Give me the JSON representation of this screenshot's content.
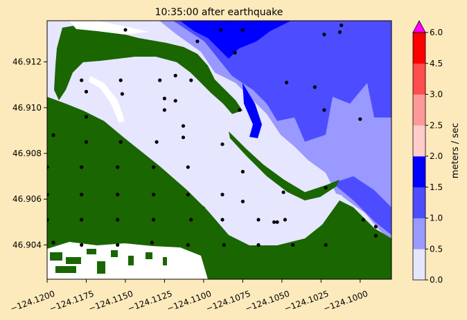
{
  "chart_data": {
    "type": "heatmap",
    "title": "10:35:00 after earthquake",
    "xlabel": "",
    "ylabel": "",
    "xlim": [
      -124.12,
      -124.098
    ],
    "ylim": [
      46.9025,
      46.9138
    ],
    "x_ticks": [
      -124.12,
      -124.1175,
      -124.115,
      -124.1125,
      -124.11,
      -124.1075,
      -124.105,
      -124.1025,
      -124.1
    ],
    "x_tick_labels": [
      "−124.1200",
      "−124.1175",
      "−124.1150",
      "−124.1125",
      "−124.1100",
      "−124.1075",
      "−124.1050",
      "−124.1025",
      "−124.1000"
    ],
    "y_ticks": [
      46.904,
      46.906,
      46.908,
      46.91,
      46.912
    ],
    "y_tick_labels": [
      "46.904",
      "46.906",
      "46.908",
      "46.910",
      "46.912"
    ],
    "grid": false,
    "colorbar": {
      "label": "meters / sec",
      "levels": [
        0.0,
        0.5,
        1.0,
        1.5,
        2.0,
        2.5,
        3.0,
        4.5,
        6.0
      ],
      "level_labels": [
        "0.0",
        "0.5",
        "1.0",
        "1.5",
        "2.0",
        "2.5",
        "3.0",
        "4.5",
        "6.0"
      ],
      "colors": [
        "#e6e6ff",
        "#9999ff",
        "#4d4dff",
        "#0000ff",
        "#ffcccc",
        "#ff9999",
        "#ff4d4d",
        "#ff0000"
      ],
      "extend_color": "#ff00ff"
    },
    "land_color": "#1a6600",
    "dry_color": "#ffffff",
    "arrow_color": "#000000",
    "velocity_points": [
      {
        "x": -124.12,
        "y": 46.9074
      },
      {
        "x": -124.12,
        "y": 46.9062
      },
      {
        "x": -124.12,
        "y": 46.9051
      },
      {
        "x": -124.1196,
        "y": 46.9041
      },
      {
        "x": -124.1196,
        "y": 46.9088
      },
      {
        "x": -124.1178,
        "y": 46.9112
      },
      {
        "x": -124.1175,
        "y": 46.9107
      },
      {
        "x": -124.1175,
        "y": 46.9096
      },
      {
        "x": -124.1175,
        "y": 46.9085
      },
      {
        "x": -124.1178,
        "y": 46.9074
      },
      {
        "x": -124.1178,
        "y": 46.9062
      },
      {
        "x": -124.1178,
        "y": 46.9051
      },
      {
        "x": -124.1178,
        "y": 46.904
      },
      {
        "x": -124.1153,
        "y": 46.9112
      },
      {
        "x": -124.1152,
        "y": 46.9106
      },
      {
        "x": -124.1153,
        "y": 46.9085
      },
      {
        "x": -124.1155,
        "y": 46.9074
      },
      {
        "x": -124.1155,
        "y": 46.9062
      },
      {
        "x": -124.1155,
        "y": 46.9051
      },
      {
        "x": -124.1155,
        "y": 46.904
      },
      {
        "x": -124.115,
        "y": 46.9134
      },
      {
        "x": -124.1128,
        "y": 46.9112
      },
      {
        "x": -124.113,
        "y": 46.9085
      },
      {
        "x": -124.1132,
        "y": 46.9074
      },
      {
        "x": -124.1132,
        "y": 46.9062
      },
      {
        "x": -124.1132,
        "y": 46.9051
      },
      {
        "x": -124.1133,
        "y": 46.9041
      },
      {
        "x": -124.1125,
        "y": 46.9104
      },
      {
        "x": -124.1125,
        "y": 46.9099
      },
      {
        "x": -124.1118,
        "y": 46.9103
      },
      {
        "x": -124.1118,
        "y": 46.9114
      },
      {
        "x": -124.111,
        "y": 46.9074
      },
      {
        "x": -124.111,
        "y": 46.9062
      },
      {
        "x": -124.1108,
        "y": 46.9112
      },
      {
        "x": -124.1108,
        "y": 46.9051
      },
      {
        "x": -124.111,
        "y": 46.904
      },
      {
        "x": -124.1113,
        "y": 46.9092
      },
      {
        "x": -124.1113,
        "y": 46.9087
      },
      {
        "x": -124.1104,
        "y": 46.9129
      },
      {
        "x": -124.1088,
        "y": 46.9084
      },
      {
        "x": -124.1088,
        "y": 46.9062
      },
      {
        "x": -124.1088,
        "y": 46.9051
      },
      {
        "x": -124.1087,
        "y": 46.904
      },
      {
        "x": -124.1089,
        "y": 46.9134
      },
      {
        "x": -124.1077,
        "y": 46.9099
      },
      {
        "x": -124.108,
        "y": 46.9124
      },
      {
        "x": -124.1075,
        "y": 46.9134
      },
      {
        "x": -124.1075,
        "y": 46.9072
      },
      {
        "x": -124.1075,
        "y": 46.9059
      },
      {
        "x": -124.1065,
        "y": 46.9051
      },
      {
        "x": -124.1065,
        "y": 46.904
      },
      {
        "x": -124.1055,
        "y": 46.905
      },
      {
        "x": -124.1053,
        "y": 46.905
      },
      {
        "x": -124.1049,
        "y": 46.9063
      },
      {
        "x": -124.1048,
        "y": 46.9051
      },
      {
        "x": -124.1047,
        "y": 46.9111
      },
      {
        "x": -124.1043,
        "y": 46.904
      },
      {
        "x": -124.1029,
        "y": 46.9109
      },
      {
        "x": -124.1022,
        "y": 46.9065
      },
      {
        "x": -124.1022,
        "y": 46.904
      },
      {
        "x": -124.1023,
        "y": 46.9099
      },
      {
        "x": -124.1023,
        "y": 46.9132
      },
      {
        "x": -124.1013,
        "y": 46.9133
      },
      {
        "x": -124.1012,
        "y": 46.9136
      },
      {
        "x": -124.1,
        "y": 46.9095
      },
      {
        "x": -124.0998,
        "y": 46.9051
      },
      {
        "x": -124.099,
        "y": 46.9048
      },
      {
        "x": -124.099,
        "y": 46.9044
      }
    ]
  }
}
